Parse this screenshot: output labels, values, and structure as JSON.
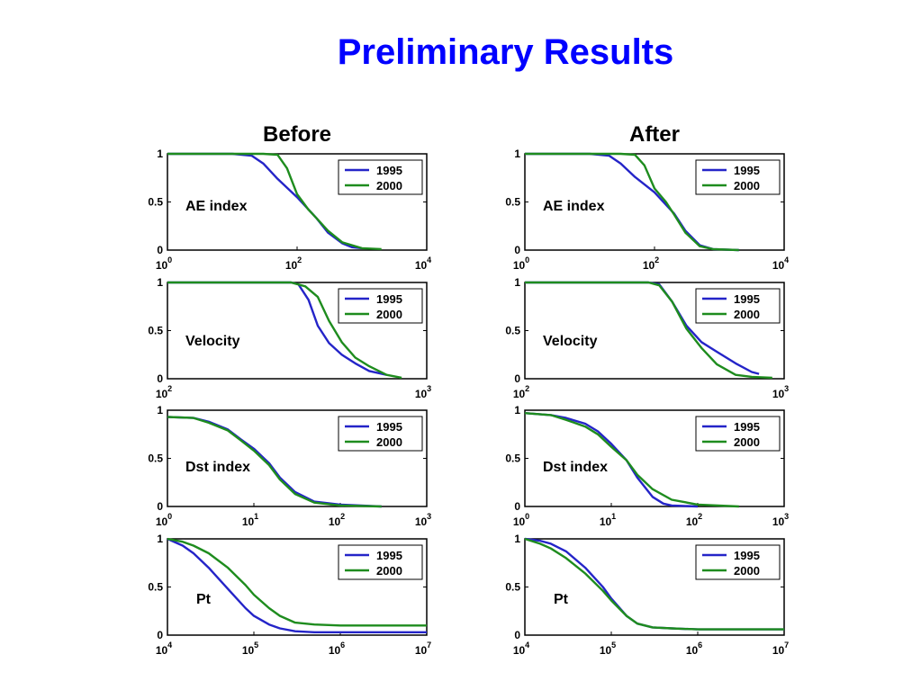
{
  "slide": {
    "title": "Preliminary Results"
  },
  "columns": [
    "Before",
    "After"
  ],
  "colors": {
    "title": "#0000ff",
    "s1995": "#2424c8",
    "s2000": "#1e8c1e",
    "axis": "#000000"
  },
  "chart_data": [
    {
      "type": "line",
      "column": "Before",
      "label": "AE index",
      "xscale": "log",
      "xlim": [
        1,
        10000
      ],
      "ylim": [
        0,
        1
      ],
      "xticks": [
        {
          "base": "10",
          "exp": "0"
        },
        {
          "base": "10",
          "exp": "2"
        },
        {
          "base": "10",
          "exp": "4"
        }
      ],
      "yticks": [
        "0",
        "0.5",
        "1"
      ],
      "legend_position": "top-right",
      "series": [
        {
          "name": "1995",
          "x": [
            1,
            10,
            20,
            30,
            50,
            100,
            200,
            300,
            500,
            700,
            1000
          ],
          "y": [
            1,
            1,
            0.98,
            0.9,
            0.74,
            0.55,
            0.33,
            0.18,
            0.07,
            0.03,
            0.02
          ]
        },
        {
          "name": "2000",
          "x": [
            1,
            30,
            50,
            70,
            100,
            150,
            200,
            300,
            500,
            1000,
            2000
          ],
          "y": [
            1,
            1,
            0.99,
            0.85,
            0.58,
            0.42,
            0.33,
            0.2,
            0.08,
            0.02,
            0.01
          ]
        }
      ]
    },
    {
      "type": "line",
      "column": "After",
      "label": "AE index",
      "xscale": "log",
      "xlim": [
        1,
        10000
      ],
      "ylim": [
        0,
        1
      ],
      "xticks": [
        {
          "base": "10",
          "exp": "0"
        },
        {
          "base": "10",
          "exp": "2"
        },
        {
          "base": "10",
          "exp": "4"
        }
      ],
      "yticks": [
        "0",
        "0.5",
        "1"
      ],
      "legend_position": "top-right",
      "series": [
        {
          "name": "1995",
          "x": [
            1,
            10,
            20,
            30,
            50,
            100,
            200,
            300,
            500,
            800,
            2000
          ],
          "y": [
            1,
            1,
            0.98,
            0.9,
            0.76,
            0.6,
            0.38,
            0.2,
            0.05,
            0.01,
            0
          ]
        },
        {
          "name": "2000",
          "x": [
            1,
            30,
            50,
            70,
            100,
            150,
            200,
            300,
            500,
            800,
            2000
          ],
          "y": [
            1,
            1,
            0.99,
            0.88,
            0.64,
            0.5,
            0.37,
            0.18,
            0.04,
            0.01,
            0
          ]
        }
      ]
    },
    {
      "type": "line",
      "column": "Before",
      "label": "Velocity",
      "xscale": "log",
      "xlim": [
        100,
        1000
      ],
      "ylim": [
        0,
        1
      ],
      "xticks": [
        {
          "base": "10",
          "exp": "2"
        },
        {
          "base": "10",
          "exp": "3"
        }
      ],
      "yticks": [
        "0",
        "0.5",
        "1"
      ],
      "legend_position": "top-right",
      "series": [
        {
          "name": "1995",
          "x": [
            100,
            300,
            320,
            350,
            380,
            420,
            470,
            530,
            600,
            700
          ],
          "y": [
            1,
            1,
            0.98,
            0.82,
            0.55,
            0.37,
            0.25,
            0.16,
            0.08,
            0.04
          ]
        },
        {
          "name": "2000",
          "x": [
            100,
            300,
            340,
            380,
            420,
            470,
            530,
            600,
            700,
            800
          ],
          "y": [
            1,
            1,
            0.96,
            0.85,
            0.6,
            0.38,
            0.22,
            0.13,
            0.04,
            0.01
          ]
        }
      ]
    },
    {
      "type": "line",
      "column": "After",
      "label": "Velocity",
      "xscale": "log",
      "xlim": [
        100,
        1000
      ],
      "ylim": [
        0,
        1
      ],
      "xticks": [
        {
          "base": "10",
          "exp": "2"
        },
        {
          "base": "10",
          "exp": "3"
        }
      ],
      "yticks": [
        "0",
        "0.5",
        "1"
      ],
      "legend_position": "top-right",
      "series": [
        {
          "name": "1995",
          "x": [
            100,
            300,
            330,
            370,
            420,
            480,
            550,
            650,
            750,
            800
          ],
          "y": [
            1,
            1,
            0.98,
            0.8,
            0.55,
            0.38,
            0.28,
            0.16,
            0.07,
            0.05
          ]
        },
        {
          "name": "2000",
          "x": [
            100,
            300,
            330,
            370,
            420,
            480,
            550,
            650,
            750,
            900
          ],
          "y": [
            1,
            1,
            0.97,
            0.8,
            0.52,
            0.32,
            0.15,
            0.04,
            0.02,
            0.01
          ]
        }
      ]
    },
    {
      "type": "line",
      "column": "Before",
      "label": "Dst index",
      "xscale": "log",
      "xlim": [
        1,
        1000
      ],
      "ylim": [
        0,
        1
      ],
      "xticks": [
        {
          "base": "10",
          "exp": "0"
        },
        {
          "base": "10",
          "exp": "1"
        },
        {
          "base": "10",
          "exp": "2"
        },
        {
          "base": "10",
          "exp": "3"
        }
      ],
      "yticks": [
        "0",
        "0.5",
        "1"
      ],
      "legend_position": "top-right",
      "series": [
        {
          "name": "1995",
          "x": [
            1,
            2,
            3,
            5,
            7,
            10,
            15,
            20,
            30,
            50,
            100,
            300
          ],
          "y": [
            0.93,
            0.92,
            0.88,
            0.8,
            0.7,
            0.6,
            0.45,
            0.3,
            0.15,
            0.05,
            0.02,
            0
          ]
        },
        {
          "name": "2000",
          "x": [
            1,
            2,
            3,
            5,
            7,
            10,
            15,
            20,
            30,
            50,
            100,
            300
          ],
          "y": [
            0.93,
            0.92,
            0.87,
            0.79,
            0.69,
            0.58,
            0.43,
            0.28,
            0.13,
            0.04,
            0.01,
            0
          ]
        }
      ]
    },
    {
      "type": "line",
      "column": "After",
      "label": "Dst index",
      "xscale": "log",
      "xlim": [
        1,
        1000
      ],
      "ylim": [
        0,
        1
      ],
      "xticks": [
        {
          "base": "10",
          "exp": "0"
        },
        {
          "base": "10",
          "exp": "1"
        },
        {
          "base": "10",
          "exp": "2"
        },
        {
          "base": "10",
          "exp": "3"
        }
      ],
      "yticks": [
        "0",
        "0.5",
        "1"
      ],
      "legend_position": "top-right",
      "series": [
        {
          "name": "1995",
          "x": [
            1,
            2,
            3,
            5,
            7,
            10,
            15,
            20,
            30,
            40,
            50,
            100
          ],
          "y": [
            0.97,
            0.95,
            0.92,
            0.86,
            0.78,
            0.65,
            0.48,
            0.3,
            0.1,
            0.03,
            0.01,
            0
          ]
        },
        {
          "name": "2000",
          "x": [
            1,
            2,
            3,
            5,
            7,
            10,
            15,
            20,
            30,
            50,
            100,
            300
          ],
          "y": [
            0.97,
            0.95,
            0.9,
            0.83,
            0.75,
            0.62,
            0.48,
            0.33,
            0.18,
            0.07,
            0.02,
            0
          ]
        }
      ]
    },
    {
      "type": "line",
      "column": "Before",
      "label": "Pt",
      "xscale": "log",
      "xlim": [
        10000,
        10000000
      ],
      "ylim": [
        0,
        1
      ],
      "xticks": [
        {
          "base": "10",
          "exp": "4"
        },
        {
          "base": "10",
          "exp": "5"
        },
        {
          "base": "10",
          "exp": "6"
        },
        {
          "base": "10",
          "exp": "7"
        }
      ],
      "yticks": [
        "0",
        "0.5",
        "1"
      ],
      "legend_position": "top-right",
      "series": [
        {
          "name": "1995",
          "x": [
            10000,
            15000,
            20000,
            30000,
            50000,
            80000,
            100000,
            150000,
            200000,
            300000,
            500000,
            1000000,
            10000000
          ],
          "y": [
            1,
            0.93,
            0.85,
            0.7,
            0.48,
            0.28,
            0.2,
            0.11,
            0.07,
            0.04,
            0.03,
            0.03,
            0.03
          ]
        },
        {
          "name": "2000",
          "x": [
            10000,
            15000,
            20000,
            30000,
            50000,
            80000,
            100000,
            150000,
            200000,
            300000,
            500000,
            1000000,
            10000000
          ],
          "y": [
            1,
            0.97,
            0.93,
            0.85,
            0.7,
            0.52,
            0.42,
            0.28,
            0.2,
            0.13,
            0.11,
            0.1,
            0.1
          ]
        }
      ]
    },
    {
      "type": "line",
      "column": "After",
      "label": "Pt",
      "xscale": "log",
      "xlim": [
        10000,
        10000000
      ],
      "ylim": [
        0,
        1
      ],
      "xticks": [
        {
          "base": "10",
          "exp": "4"
        },
        {
          "base": "10",
          "exp": "5"
        },
        {
          "base": "10",
          "exp": "6"
        },
        {
          "base": "10",
          "exp": "7"
        }
      ],
      "yticks": [
        "0",
        "0.5",
        "1"
      ],
      "legend_position": "top-right",
      "series": [
        {
          "name": "1995",
          "x": [
            10000,
            15000,
            20000,
            30000,
            50000,
            80000,
            100000,
            150000,
            200000,
            300000,
            500000,
            1000000,
            10000000
          ],
          "y": [
            1,
            0.98,
            0.95,
            0.87,
            0.7,
            0.5,
            0.38,
            0.2,
            0.12,
            0.08,
            0.07,
            0.06,
            0.06
          ]
        },
        {
          "name": "2000",
          "x": [
            10000,
            15000,
            20000,
            30000,
            50000,
            80000,
            100000,
            150000,
            200000,
            300000,
            500000,
            1000000,
            10000000
          ],
          "y": [
            1,
            0.95,
            0.9,
            0.8,
            0.64,
            0.46,
            0.36,
            0.2,
            0.12,
            0.08,
            0.07,
            0.06,
            0.06
          ]
        }
      ]
    }
  ]
}
